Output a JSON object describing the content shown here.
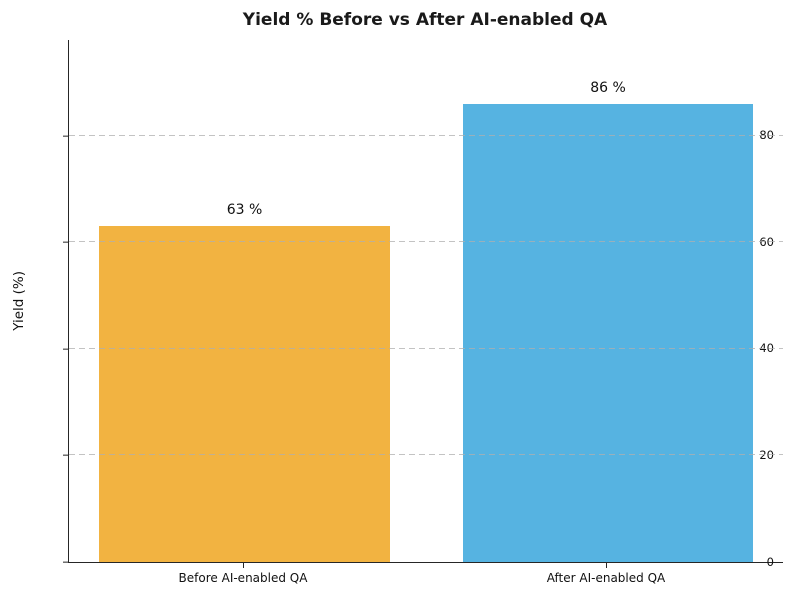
{
  "title": "Yield % Before vs After AI-enabled QA",
  "chart_data": {
    "type": "bar",
    "title": "Yield % Before vs After AI-enabled QA",
    "categories": [
      "Before AI-enabled QA",
      "After AI-enabled QA"
    ],
    "values": [
      63,
      86
    ],
    "bar_value_labels": [
      "63 %",
      "86 %"
    ],
    "bar_colors": [
      "#F2B341",
      "#56B3E1"
    ],
    "xlabel": "",
    "ylabel": "Yield (%)",
    "ylim": [
      0,
      98
    ],
    "yticks": [
      0,
      20,
      40,
      60,
      80
    ],
    "grid": "horizontal dashed gridlines at y ticks, light gray",
    "legend": "none",
    "spines": "left and bottom only"
  }
}
